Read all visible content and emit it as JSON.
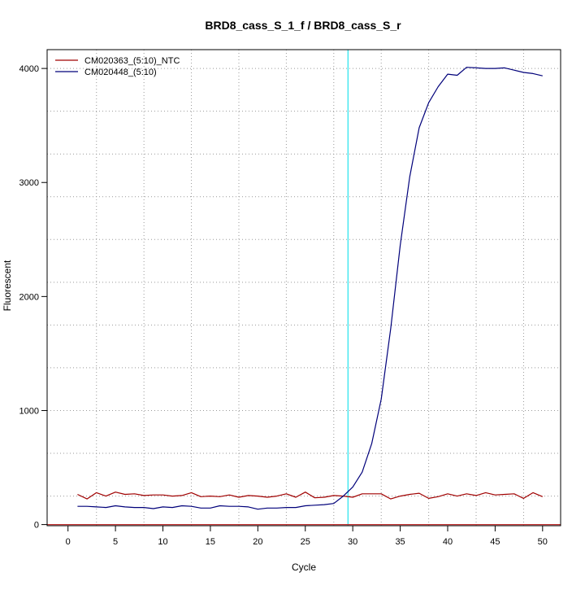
{
  "chart_data": {
    "type": "line",
    "title": "BRD8_cass_S_1_f / BRD8_cass_S_r",
    "xlabel": "Cycle",
    "ylabel": "Fluorescent",
    "xlim": [
      -2.2,
      51.9
    ],
    "ylim": [
      -10,
      4165
    ],
    "x_ticks": [
      0,
      5,
      10,
      15,
      20,
      25,
      30,
      35,
      40,
      45,
      50
    ],
    "x_tick_labels": [
      "0",
      "5",
      "10",
      "15",
      "20",
      "25",
      "30",
      "35",
      "40",
      "45",
      "50"
    ],
    "y_ticks": [
      0,
      1000,
      2000,
      3000,
      4000
    ],
    "y_tick_labels": [
      "0",
      "1000",
      "2000",
      "3000",
      "4000"
    ],
    "grid_x": [
      3,
      8,
      13,
      18,
      23,
      28,
      33,
      38,
      43,
      48
    ],
    "grid_y": [
      250,
      625,
      1000,
      1375,
      1750,
      2125,
      2500,
      2875,
      3250,
      3625,
      4000
    ],
    "threshold_x": 29.5,
    "baseline_y": 0,
    "grid": true,
    "legend_position": "top-left",
    "x": [
      1,
      2,
      3,
      4,
      5,
      6,
      7,
      8,
      9,
      10,
      11,
      12,
      13,
      14,
      15,
      16,
      17,
      18,
      19,
      20,
      21,
      22,
      23,
      24,
      25,
      26,
      27,
      28,
      29,
      30,
      31,
      32,
      33,
      34,
      35,
      36,
      37,
      38,
      39,
      40,
      41,
      42,
      43,
      44,
      45,
      46,
      47,
      48,
      49,
      50
    ],
    "series": [
      {
        "name": "CM020363_(5:10)_NTC",
        "color": "#a00000",
        "values": [
          265,
          225,
          280,
          250,
          285,
          265,
          270,
          255,
          260,
          260,
          250,
          255,
          280,
          245,
          250,
          245,
          260,
          240,
          255,
          250,
          240,
          250,
          270,
          240,
          285,
          235,
          240,
          255,
          250,
          240,
          270,
          270,
          270,
          225,
          250,
          265,
          275,
          230,
          245,
          270,
          250,
          270,
          255,
          280,
          260,
          265,
          270,
          230,
          280,
          245
        ]
      },
      {
        "name": "CM020448_(5:10)",
        "color": "#00007a",
        "values": [
          160,
          160,
          155,
          150,
          165,
          155,
          150,
          150,
          140,
          155,
          150,
          165,
          160,
          145,
          145,
          165,
          160,
          160,
          155,
          135,
          145,
          145,
          150,
          150,
          165,
          170,
          175,
          185,
          250,
          330,
          460,
          710,
          1100,
          1720,
          2450,
          3050,
          3480,
          3700,
          3840,
          3950,
          3940,
          4010,
          4005,
          4000,
          4000,
          4005,
          3985,
          3965,
          3955,
          3935
        ]
      }
    ]
  }
}
